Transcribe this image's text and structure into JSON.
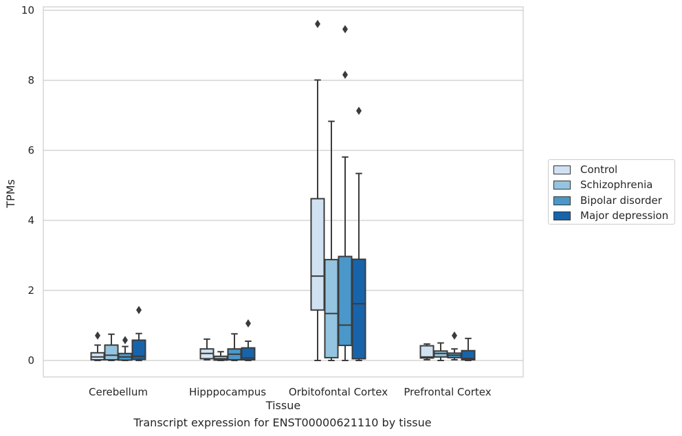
{
  "caption": "Transcript expression for ENST00000621110 by tissue",
  "legend": {
    "items": [
      {
        "label": "Control",
        "color": "#d0e1f2"
      },
      {
        "label": "Schizophrenia",
        "color": "#94c4df"
      },
      {
        "label": "Bipolar disorder",
        "color": "#4a98c9"
      },
      {
        "label": "Major depression",
        "color": "#1764ab"
      }
    ]
  },
  "chart_data": {
    "type": "box",
    "title": "",
    "xlabel": "Tissue",
    "ylabel": "TPMs",
    "ylim": [
      -0.45,
      10.1
    ],
    "yticks": [
      0,
      2,
      4,
      6,
      8,
      10
    ],
    "grid": "horizontal",
    "legend_position": "right",
    "categories": [
      "Cerebellum",
      "Hipppocampus",
      "Orbitofontal Cortex",
      "Prefrontal Cortex"
    ],
    "series": [
      {
        "name": "Control",
        "color": "#d0e1f2",
        "boxes": [
          {
            "whisker_low": 0.0,
            "q1": 0.02,
            "median": 0.1,
            "q3": 0.22,
            "whisker_high": 0.44,
            "outliers": [
              0.71
            ]
          },
          {
            "whisker_low": 0.02,
            "q1": 0.05,
            "median": 0.2,
            "q3": 0.33,
            "whisker_high": 0.61,
            "outliers": []
          },
          {
            "whisker_low": 0.0,
            "q1": 1.44,
            "median": 2.41,
            "q3": 4.62,
            "whisker_high": 8.01,
            "outliers": [
              9.61
            ]
          },
          {
            "whisker_low": 0.02,
            "q1": 0.07,
            "median": 0.1,
            "q3": 0.42,
            "whisker_high": 0.47,
            "outliers": []
          }
        ]
      },
      {
        "name": "Schizophrenia",
        "color": "#94c4df",
        "boxes": [
          {
            "whisker_low": 0.0,
            "q1": 0.02,
            "median": 0.15,
            "q3": 0.44,
            "whisker_high": 0.75,
            "outliers": []
          },
          {
            "whisker_low": 0.0,
            "q1": 0.01,
            "median": 0.05,
            "q3": 0.12,
            "whisker_high": 0.25,
            "outliers": []
          },
          {
            "whisker_low": 0.0,
            "q1": 0.08,
            "median": 1.34,
            "q3": 2.88,
            "whisker_high": 6.83,
            "outliers": []
          },
          {
            "whisker_low": 0.0,
            "q1": 0.1,
            "median": 0.2,
            "q3": 0.27,
            "whisker_high": 0.5,
            "outliers": []
          }
        ]
      },
      {
        "name": "Bipolar disorder",
        "color": "#4a98c9",
        "boxes": [
          {
            "whisker_low": 0.0,
            "q1": 0.01,
            "median": 0.1,
            "q3": 0.2,
            "whisker_high": 0.4,
            "outliers": [
              0.58
            ]
          },
          {
            "whisker_low": 0.0,
            "q1": 0.02,
            "median": 0.18,
            "q3": 0.33,
            "whisker_high": 0.76,
            "outliers": []
          },
          {
            "whisker_low": 0.0,
            "q1": 0.43,
            "median": 1.01,
            "q3": 2.97,
            "whisker_high": 5.81,
            "outliers": [
              8.16,
              9.46
            ]
          },
          {
            "whisker_low": 0.02,
            "q1": 0.08,
            "median": 0.15,
            "q3": 0.21,
            "whisker_high": 0.33,
            "outliers": [
              0.71
            ]
          }
        ]
      },
      {
        "name": "Major depression",
        "color": "#1764ab",
        "boxes": [
          {
            "whisker_low": 0.0,
            "q1": 0.03,
            "median": 0.12,
            "q3": 0.58,
            "whisker_high": 0.77,
            "outliers": [
              1.44
            ]
          },
          {
            "whisker_low": 0.0,
            "q1": 0.02,
            "median": 0.07,
            "q3": 0.36,
            "whisker_high": 0.55,
            "outliers": [
              1.06
            ]
          },
          {
            "whisker_low": 0.0,
            "q1": 0.05,
            "median": 1.62,
            "q3": 2.89,
            "whisker_high": 5.34,
            "outliers": [
              7.13
            ]
          },
          {
            "whisker_low": 0.0,
            "q1": 0.02,
            "median": 0.06,
            "q3": 0.28,
            "whisker_high": 0.63,
            "outliers": []
          }
        ]
      }
    ]
  }
}
